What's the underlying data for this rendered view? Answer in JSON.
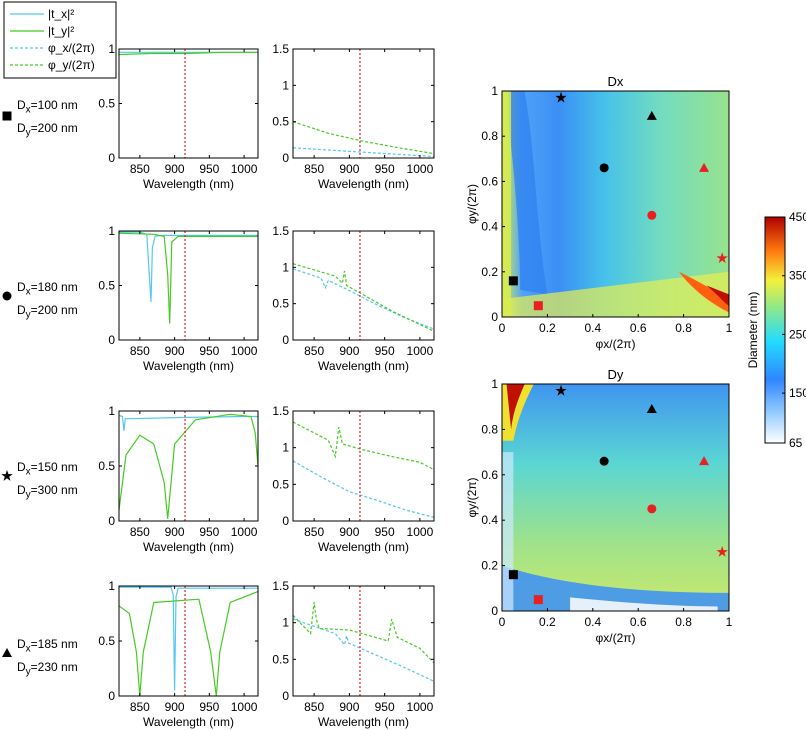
{
  "legend": {
    "items": [
      {
        "label": "|t_x|²",
        "style": "solid",
        "color": "#55c8ef"
      },
      {
        "label": "|t_y|²",
        "style": "solid",
        "color": "#44cc22"
      },
      {
        "label": "φ_x/(2π)",
        "style": "dashed",
        "color": "#55c8ef"
      },
      {
        "label": "φ_y/(2π)",
        "style": "dashed",
        "color": "#44cc22"
      }
    ]
  },
  "rows": [
    {
      "marker": "square",
      "dx_label": "Dx=100 nm",
      "dy_label": "Dy=200 nm",
      "dx": "=100 nm",
      "dy": "=200 nm"
    },
    {
      "marker": "circle",
      "dx_label": "Dx=180 nm",
      "dy_label": "Dy=200 nm",
      "dx": "=180 nm",
      "dy": "=200 nm"
    },
    {
      "marker": "star",
      "dx_label": "Dx=150 nm",
      "dy_label": "Dy=300 nm",
      "dx": "=150 nm",
      "dy": "=300 nm"
    },
    {
      "marker": "triangle",
      "dx_label": "Dx=185 nm",
      "dy_label": "Dy=230 nm",
      "dx": "=185 nm",
      "dy": "=230 nm"
    }
  ],
  "chart_data": [
    {
      "type": "line",
      "id": "transmission-row1",
      "xlabel": "Wavelength (nm)",
      "xlim": [
        820,
        1020
      ],
      "ylim": [
        0,
        1
      ],
      "xticks": [
        850,
        900,
        950,
        1000
      ],
      "yticks": [
        0,
        0.5,
        1
      ],
      "marker_wavelength": 915,
      "series": [
        {
          "name": "|t_x|^2",
          "x": [
            820,
            1020
          ],
          "y": [
            0.97,
            0.97
          ]
        },
        {
          "name": "|t_y|^2",
          "x": [
            820,
            870,
            920,
            970,
            1020
          ],
          "y": [
            0.95,
            0.96,
            0.96,
            0.97,
            0.97
          ]
        }
      ]
    },
    {
      "type": "line",
      "id": "phase-row1",
      "xlabel": "Wavelength (nm)",
      "xlim": [
        820,
        1020
      ],
      "ylim": [
        0,
        1.5
      ],
      "xticks": [
        850,
        900,
        950,
        1000
      ],
      "yticks": [
        0,
        0.5,
        1,
        1.5
      ],
      "marker_wavelength": 915,
      "series": [
        {
          "name": "phi_x/(2pi)",
          "x": [
            820,
            870,
            920,
            970,
            1020
          ],
          "y": [
            0.14,
            0.11,
            0.08,
            0.05,
            0.02
          ]
        },
        {
          "name": "phi_y/(2pi)",
          "x": [
            820,
            870,
            920,
            970,
            1020
          ],
          "y": [
            0.5,
            0.34,
            0.23,
            0.14,
            0.06
          ]
        }
      ]
    },
    {
      "type": "line",
      "id": "transmission-row2",
      "xlabel": "Wavelength (nm)",
      "xlim": [
        820,
        1020
      ],
      "ylim": [
        0,
        1
      ],
      "xticks": [
        850,
        900,
        950,
        1000
      ],
      "yticks": [
        0,
        0.5,
        1
      ],
      "marker_wavelength": 915,
      "series": [
        {
          "name": "|t_x|^2",
          "x": [
            820,
            850,
            860,
            866,
            868,
            872,
            880,
            1020
          ],
          "y": [
            0.99,
            0.99,
            0.97,
            0.35,
            0.85,
            0.95,
            0.96,
            0.96
          ]
        },
        {
          "name": "|t_y|^2",
          "x": [
            820,
            870,
            885,
            890,
            893,
            896,
            905,
            1020
          ],
          "y": [
            0.98,
            0.97,
            0.95,
            0.6,
            0.15,
            0.9,
            0.95,
            0.95
          ]
        }
      ]
    },
    {
      "type": "line",
      "id": "phase-row2",
      "xlabel": "Wavelength (nm)",
      "xlim": [
        820,
        1020
      ],
      "ylim": [
        0,
        1.5
      ],
      "xticks": [
        850,
        900,
        950,
        1000
      ],
      "yticks": [
        0,
        0.5,
        1,
        1.5
      ],
      "marker_wavelength": 915,
      "series": [
        {
          "name": "phi_x/(2pi)",
          "x": [
            820,
            860,
            866,
            870,
            900,
            940,
            980,
            1020
          ],
          "y": [
            0.98,
            0.85,
            0.72,
            0.82,
            0.68,
            0.48,
            0.3,
            0.15
          ]
        },
        {
          "name": "phi_y/(2pi)",
          "x": [
            820,
            880,
            890,
            893,
            896,
            920,
            960,
            1020
          ],
          "y": [
            1.05,
            0.88,
            0.78,
            0.95,
            0.75,
            0.62,
            0.4,
            0.12
          ]
        }
      ]
    },
    {
      "type": "line",
      "id": "transmission-row3",
      "xlabel": "Wavelength (nm)",
      "xlim": [
        820,
        1020
      ],
      "ylim": [
        0,
        1
      ],
      "xticks": [
        850,
        900,
        950,
        1000
      ],
      "yticks": [
        0,
        0.5,
        1
      ],
      "marker_wavelength": 915,
      "series": [
        {
          "name": "|t_x|^2",
          "x": [
            820,
            825,
            827,
            829,
            835,
            900,
            1000,
            1020
          ],
          "y": [
            0.96,
            0.95,
            0.82,
            0.93,
            0.93,
            0.94,
            0.95,
            0.95
          ]
        },
        {
          "name": "|t_y|^2",
          "x": [
            820,
            830,
            850,
            870,
            885,
            890,
            900,
            930,
            980,
            1010,
            1016,
            1020
          ],
          "y": [
            0.1,
            0.6,
            0.78,
            0.7,
            0.35,
            0.02,
            0.7,
            0.92,
            0.97,
            0.95,
            0.8,
            0.5
          ]
        }
      ]
    },
    {
      "type": "line",
      "id": "phase-row3",
      "xlabel": "Wavelength (nm)",
      "xlim": [
        820,
        1020
      ],
      "ylim": [
        0,
        1.5
      ],
      "xticks": [
        850,
        900,
        950,
        1000
      ],
      "yticks": [
        0,
        0.5,
        1,
        1.5
      ],
      "marker_wavelength": 915,
      "series": [
        {
          "name": "phi_x/(2pi)",
          "x": [
            820,
            860,
            900,
            940,
            980,
            1020
          ],
          "y": [
            0.82,
            0.6,
            0.4,
            0.28,
            0.15,
            0.05
          ]
        },
        {
          "name": "phi_y/(2pi)",
          "x": [
            820,
            870,
            880,
            885,
            890,
            920,
            960,
            1000,
            1020
          ],
          "y": [
            1.35,
            1.1,
            0.88,
            1.28,
            1.05,
            0.97,
            0.88,
            0.8,
            0.7
          ]
        }
      ]
    },
    {
      "type": "line",
      "id": "transmission-row4",
      "xlabel": "Wavelength (nm)",
      "xlim": [
        820,
        1020
      ],
      "ylim": [
        0,
        1
      ],
      "xticks": [
        850,
        900,
        950,
        1000
      ],
      "yticks": [
        0,
        0.5,
        1
      ],
      "marker_wavelength": 915,
      "series": [
        {
          "name": "|t_x|^2",
          "x": [
            820,
            895,
            898,
            900,
            902,
            905,
            1020
          ],
          "y": [
            0.99,
            0.99,
            0.92,
            0.05,
            0.9,
            0.98,
            0.98
          ]
        },
        {
          "name": "|t_y|^2",
          "x": [
            820,
            835,
            845,
            850,
            855,
            870,
            935,
            952,
            960,
            965,
            980,
            1020
          ],
          "y": [
            0.82,
            0.75,
            0.4,
            0.0,
            0.4,
            0.85,
            0.88,
            0.4,
            0.0,
            0.4,
            0.85,
            0.95
          ]
        }
      ]
    },
    {
      "type": "line",
      "id": "phase-row4",
      "xlabel": "Wavelength (nm)",
      "xlim": [
        820,
        1020
      ],
      "ylim": [
        0,
        1.5
      ],
      "xticks": [
        850,
        900,
        950,
        1000
      ],
      "yticks": [
        0,
        0.5,
        1,
        1.5
      ],
      "marker_wavelength": 915,
      "series": [
        {
          "name": "phi_x/(2pi)",
          "x": [
            820,
            880,
            893,
            896,
            899,
            940,
            980,
            1020
          ],
          "y": [
            1.05,
            0.85,
            0.7,
            0.82,
            0.72,
            0.55,
            0.38,
            0.2
          ]
        },
        {
          "name": "phi_y/(2pi)",
          "x": [
            820,
            845,
            850,
            853,
            857,
            900,
            955,
            960,
            963,
            968,
            1000,
            1020
          ],
          "y": [
            1.1,
            0.85,
            1.28,
            1.05,
            0.92,
            0.9,
            0.75,
            1.05,
            0.95,
            0.8,
            0.65,
            0.45
          ]
        }
      ]
    },
    {
      "type": "heatmap",
      "id": "map-dx",
      "title": "Dx",
      "xlabel": "φx/(2π)",
      "ylabel": "φy/(2π)",
      "xlim": [
        0,
        1
      ],
      "ylim": [
        0,
        1
      ],
      "xticks": [
        0,
        0.2,
        0.4,
        0.6,
        0.8,
        1
      ],
      "yticks": [
        0,
        0.2,
        0.4,
        0.6,
        0.8,
        1
      ],
      "points": [
        {
          "marker": "square",
          "color": "black",
          "x": 0.05,
          "y": 0.16
        },
        {
          "marker": "square",
          "color": "red",
          "x": 0.16,
          "y": 0.05
        },
        {
          "marker": "circle",
          "color": "black",
          "x": 0.45,
          "y": 0.66
        },
        {
          "marker": "circle",
          "color": "red",
          "x": 0.66,
          "y": 0.45
        },
        {
          "marker": "triangle",
          "color": "black",
          "x": 0.66,
          "y": 0.89
        },
        {
          "marker": "triangle",
          "color": "red",
          "x": 0.89,
          "y": 0.66
        },
        {
          "marker": "star",
          "color": "black",
          "x": 0.26,
          "y": 0.97
        },
        {
          "marker": "star",
          "color": "red",
          "x": 0.97,
          "y": 0.26
        }
      ]
    },
    {
      "type": "heatmap",
      "id": "map-dy",
      "title": "Dy",
      "xlabel": "φx/(2π)",
      "ylabel": "φy/(2π)",
      "xlim": [
        0,
        1
      ],
      "ylim": [
        0,
        1
      ],
      "xticks": [
        0,
        0.2,
        0.4,
        0.6,
        0.8,
        1
      ],
      "yticks": [
        0,
        0.2,
        0.4,
        0.6,
        0.8,
        1
      ],
      "points": [
        {
          "marker": "square",
          "color": "black",
          "x": 0.05,
          "y": 0.16
        },
        {
          "marker": "square",
          "color": "red",
          "x": 0.16,
          "y": 0.05
        },
        {
          "marker": "circle",
          "color": "black",
          "x": 0.45,
          "y": 0.66
        },
        {
          "marker": "circle",
          "color": "red",
          "x": 0.66,
          "y": 0.45
        },
        {
          "marker": "triangle",
          "color": "black",
          "x": 0.66,
          "y": 0.89
        },
        {
          "marker": "triangle",
          "color": "red",
          "x": 0.89,
          "y": 0.66
        },
        {
          "marker": "star",
          "color": "black",
          "x": 0.26,
          "y": 0.97
        },
        {
          "marker": "star",
          "color": "red",
          "x": 0.97,
          "y": 0.26
        }
      ]
    },
    {
      "type": "colorbar",
      "id": "colorbar",
      "label": "Diameter (nm)",
      "range": [
        65,
        450
      ],
      "ticks": [
        65,
        150,
        250,
        350,
        450
      ]
    }
  ]
}
